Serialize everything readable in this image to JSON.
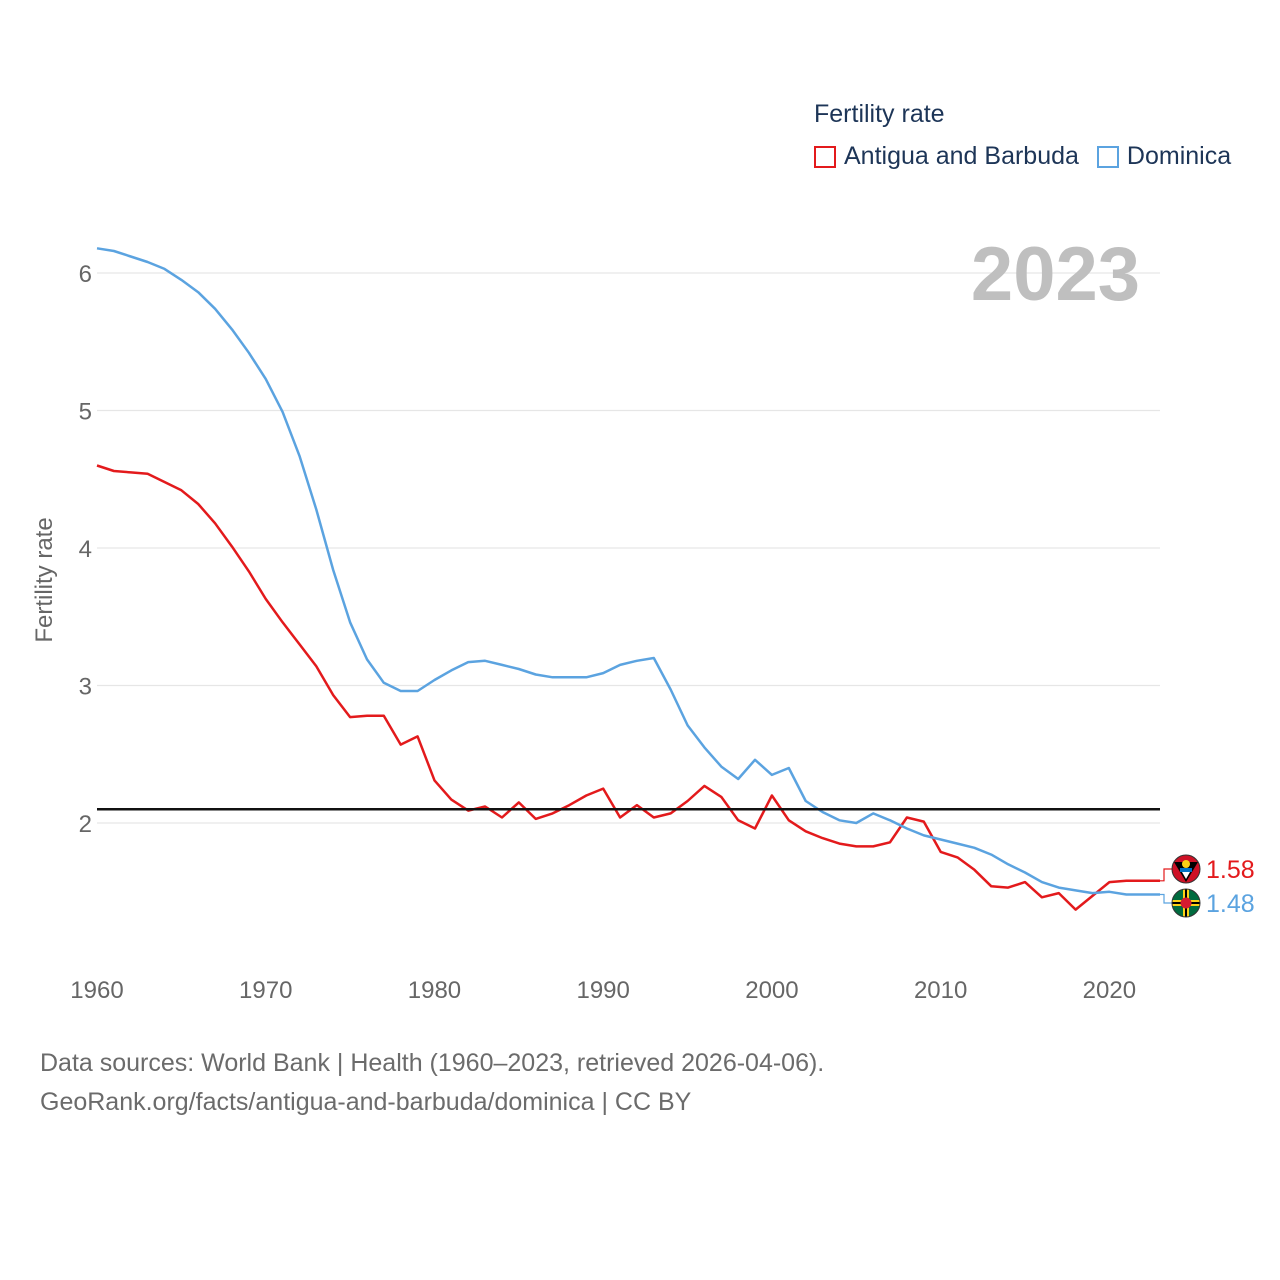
{
  "legend": {
    "title": "Fertility rate",
    "items": [
      {
        "label": "Antigua and Barbuda",
        "color": "#e31a1c"
      },
      {
        "label": "Dominica",
        "color": "#5ba3e0"
      }
    ]
  },
  "source": {
    "line1": "Data sources: World Bank | Health (1960–2023, retrieved 2026-04-06).",
    "line2": "GeoRank.org/facts/antigua-and-barbuda/dominica | CC BY"
  },
  "chart_data": {
    "type": "line",
    "title": "Fertility rate",
    "year_label": "2023",
    "xlabel": "",
    "ylabel": "Fertility rate",
    "xlim": [
      1960,
      2023
    ],
    "ylim": [
      1.0,
      6.5
    ],
    "x_ticks": [
      1960,
      1970,
      1980,
      1990,
      2000,
      2010,
      2020
    ],
    "y_ticks": [
      2,
      3,
      4,
      5,
      6
    ],
    "reference_line": 2.1,
    "x": [
      1960,
      1961,
      1962,
      1963,
      1964,
      1965,
      1966,
      1967,
      1968,
      1969,
      1970,
      1971,
      1972,
      1973,
      1974,
      1975,
      1976,
      1977,
      1978,
      1979,
      1980,
      1981,
      1982,
      1983,
      1984,
      1985,
      1986,
      1987,
      1988,
      1989,
      1990,
      1991,
      1992,
      1993,
      1994,
      1995,
      1996,
      1997,
      1998,
      1999,
      2000,
      2001,
      2002,
      2003,
      2004,
      2005,
      2006,
      2007,
      2008,
      2009,
      2010,
      2011,
      2012,
      2013,
      2014,
      2015,
      2016,
      2017,
      2018,
      2019,
      2020,
      2021,
      2022,
      2023
    ],
    "series": [
      {
        "name": "Antigua and Barbuda",
        "color": "#e31a1c",
        "end_label": "1.58",
        "values": [
          4.6,
          4.56,
          4.55,
          4.54,
          4.48,
          4.42,
          4.32,
          4.18,
          4.01,
          3.83,
          3.63,
          3.46,
          3.3,
          3.14,
          2.93,
          2.77,
          2.78,
          2.78,
          2.57,
          2.63,
          2.31,
          2.17,
          2.09,
          2.12,
          2.04,
          2.15,
          2.03,
          2.07,
          2.13,
          2.2,
          2.25,
          2.04,
          2.13,
          2.04,
          2.07,
          2.16,
          2.27,
          2.19,
          2.02,
          1.96,
          2.2,
          2.02,
          1.94,
          1.89,
          1.85,
          1.83,
          1.83,
          1.86,
          2.04,
          2.01,
          1.79,
          1.75,
          1.66,
          1.54,
          1.53,
          1.57,
          1.46,
          1.49,
          1.37,
          1.47,
          1.57,
          1.58,
          1.58,
          1.58
        ]
      },
      {
        "name": "Dominica",
        "color": "#5ba3e0",
        "end_label": "1.48",
        "values": [
          6.18,
          6.16,
          6.12,
          6.08,
          6.03,
          5.95,
          5.86,
          5.74,
          5.59,
          5.42,
          5.23,
          4.99,
          4.67,
          4.28,
          3.84,
          3.46,
          3.19,
          3.02,
          2.96,
          2.96,
          3.04,
          3.11,
          3.17,
          3.18,
          3.15,
          3.12,
          3.08,
          3.06,
          3.06,
          3.06,
          3.09,
          3.15,
          3.18,
          3.2,
          2.97,
          2.71,
          2.55,
          2.41,
          2.32,
          2.46,
          2.35,
          2.4,
          2.16,
          2.08,
          2.02,
          2.0,
          2.07,
          2.02,
          1.96,
          1.91,
          1.88,
          1.85,
          1.82,
          1.77,
          1.7,
          1.64,
          1.57,
          1.53,
          1.51,
          1.49,
          1.5,
          1.48,
          1.48,
          1.48
        ]
      }
    ]
  }
}
